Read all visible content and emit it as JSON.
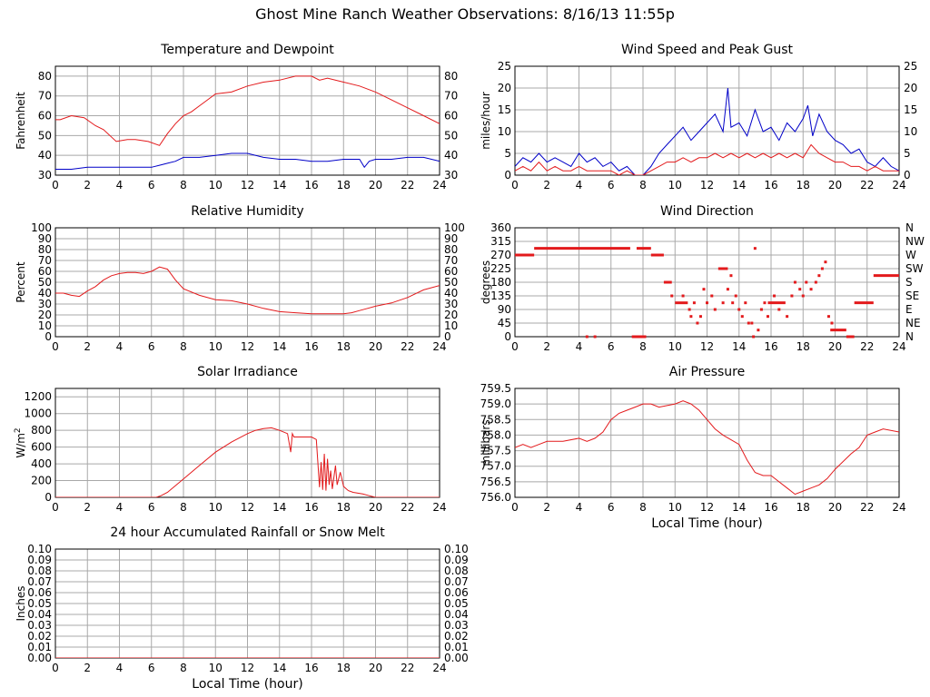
{
  "page_title": "Ghost Mine Ranch Weather Observations: 8/16/13 11:55p",
  "colors": {
    "primary": "#e31a1c",
    "secondary": "#0000c8",
    "grid": "#a8a8a8",
    "frame": "#000000"
  },
  "chart_data": [
    {
      "id": "temp",
      "type": "line",
      "title": "Temperature and Dewpoint",
      "ylabel": "Fahrenheit",
      "xlabel": "",
      "xlim": [
        0,
        24
      ],
      "ylim": [
        30,
        85
      ],
      "yticks": [
        30,
        40,
        50,
        60,
        70,
        80
      ],
      "xticks": [
        0,
        2,
        4,
        6,
        8,
        10,
        12,
        14,
        16,
        18,
        20,
        22,
        24
      ],
      "right_ticks": true,
      "series": [
        {
          "color": "#e31a1c",
          "x": [
            0,
            0.3,
            1,
            1.8,
            2.5,
            3,
            3.8,
            4.5,
            5,
            5.8,
            6.5,
            7,
            7.5,
            8,
            8.5,
            9,
            9.5,
            10,
            11,
            12,
            13,
            14,
            15,
            16,
            16.5,
            17,
            18,
            19,
            20,
            21,
            22,
            23,
            24
          ],
          "y": [
            58,
            58,
            60,
            59,
            55,
            53,
            47,
            48,
            48,
            47,
            45,
            51,
            56,
            60,
            62,
            65,
            68,
            71,
            72,
            75,
            77,
            78,
            80,
            80,
            78,
            79,
            77,
            75,
            72,
            68,
            64,
            60,
            56
          ]
        },
        {
          "color": "#0000c8",
          "x": [
            0,
            1,
            2,
            3,
            4,
            5,
            6,
            6.5,
            7,
            7.5,
            8,
            9,
            10,
            11,
            12,
            13,
            14,
            15,
            16,
            17,
            18,
            19,
            19.3,
            19.6,
            20,
            21,
            22,
            23,
            24
          ],
          "y": [
            33,
            33,
            34,
            34,
            34,
            34,
            34,
            35,
            36,
            37,
            39,
            39,
            40,
            41,
            41,
            39,
            38,
            38,
            37,
            37,
            38,
            38,
            34,
            37,
            38,
            38,
            39,
            39,
            37
          ]
        }
      ]
    },
    {
      "id": "wind",
      "type": "line",
      "title": "Wind Speed and Peak Gust",
      "ylabel": "miles/hour",
      "xlabel": "",
      "xlim": [
        0,
        24
      ],
      "ylim": [
        0,
        25
      ],
      "yticks": [
        0,
        5,
        10,
        15,
        20,
        25
      ],
      "xticks": [
        0,
        2,
        4,
        6,
        8,
        10,
        12,
        14,
        16,
        18,
        20,
        22,
        24
      ],
      "right_ticks": true,
      "series": [
        {
          "color": "#0000c8",
          "x": [
            0,
            0.5,
            1,
            1.5,
            2,
            2.5,
            3,
            3.5,
            4,
            4.5,
            5,
            5.5,
            6,
            6.5,
            7,
            7.5,
            8,
            8.5,
            9,
            9.5,
            10,
            10.5,
            11,
            11.5,
            12,
            12.5,
            13,
            13.3,
            13.5,
            14,
            14.5,
            15,
            15.5,
            16,
            16.5,
            17,
            17.5,
            18,
            18.3,
            18.6,
            19,
            19.5,
            20,
            20.5,
            21,
            21.5,
            22,
            22.5,
            23,
            23.5,
            24
          ],
          "y": [
            2,
            4,
            3,
            5,
            3,
            4,
            3,
            2,
            5,
            3,
            4,
            2,
            3,
            1,
            2,
            0,
            0,
            2,
            5,
            7,
            9,
            11,
            8,
            10,
            12,
            14,
            10,
            20,
            11,
            12,
            9,
            15,
            10,
            11,
            8,
            12,
            10,
            13,
            16,
            9,
            14,
            10,
            8,
            7,
            5,
            6,
            3,
            2,
            4,
            2,
            1
          ]
        },
        {
          "color": "#e31a1c",
          "x": [
            0,
            0.5,
            1,
            1.5,
            2,
            2.5,
            3,
            3.5,
            4,
            4.5,
            5,
            5.5,
            6,
            6.5,
            7,
            7.5,
            8,
            8.5,
            9,
            9.5,
            10,
            10.5,
            11,
            11.5,
            12,
            12.5,
            13,
            13.5,
            14,
            14.5,
            15,
            15.5,
            16,
            16.5,
            17,
            17.5,
            18,
            18.5,
            19,
            19.5,
            20,
            20.5,
            21,
            21.5,
            22,
            22.5,
            23,
            23.5,
            24
          ],
          "y": [
            1,
            2,
            1,
            3,
            1,
            2,
            1,
            1,
            2,
            1,
            1,
            1,
            1,
            0,
            1,
            0,
            0,
            1,
            2,
            3,
            3,
            4,
            3,
            4,
            4,
            5,
            4,
            5,
            4,
            5,
            4,
            5,
            4,
            5,
            4,
            5,
            4,
            7,
            5,
            4,
            3,
            3,
            2,
            2,
            1,
            2,
            1,
            1,
            1
          ]
        }
      ]
    },
    {
      "id": "humidity",
      "type": "line",
      "title": "Relative Humidity",
      "ylabel": "Percent",
      "xlabel": "",
      "xlim": [
        0,
        24
      ],
      "ylim": [
        0,
        100
      ],
      "yticks": [
        0,
        10,
        20,
        30,
        40,
        50,
        60,
        70,
        80,
        90,
        100
      ],
      "xticks": [
        0,
        2,
        4,
        6,
        8,
        10,
        12,
        14,
        16,
        18,
        20,
        22,
        24
      ],
      "right_ticks": true,
      "series": [
        {
          "color": "#e31a1c",
          "x": [
            0,
            0.5,
            1,
            1.5,
            2,
            2.5,
            3,
            3.5,
            4,
            4.5,
            5,
            5.5,
            6,
            6.5,
            7,
            7.5,
            8,
            9,
            10,
            11,
            12,
            13,
            14,
            15,
            16,
            17,
            18,
            18.5,
            19,
            19.5,
            20,
            21,
            22,
            23,
            24
          ],
          "y": [
            40,
            40,
            38,
            37,
            42,
            46,
            52,
            56,
            58,
            59,
            59,
            58,
            60,
            64,
            62,
            52,
            44,
            38,
            34,
            33,
            30,
            26,
            23,
            22,
            21,
            21,
            21,
            22,
            24,
            26,
            28,
            31,
            36,
            43,
            47
          ]
        }
      ]
    },
    {
      "id": "winddir",
      "type": "scatter",
      "title": "Wind Direction",
      "ylabel": "degrees",
      "xlabel": "",
      "xlim": [
        0,
        24
      ],
      "ylim": [
        0,
        360
      ],
      "yticks": [
        0,
        45,
        90,
        135,
        180,
        225,
        270,
        315,
        360
      ],
      "right_labels": [
        "N",
        "NE",
        "E",
        "SE",
        "S",
        "SW",
        "W",
        "NW",
        "N"
      ],
      "xticks": [
        0,
        2,
        4,
        6,
        8,
        10,
        12,
        14,
        16,
        18,
        20,
        22,
        24
      ],
      "segments": [
        {
          "x": [
            0,
            1.2
          ],
          "y": 270
        },
        {
          "x": [
            1.2,
            7.2
          ],
          "y": 292
        },
        {
          "x": [
            7.6,
            8.5
          ],
          "y": 292
        },
        {
          "x": [
            8.5,
            9.3
          ],
          "y": 270
        },
        {
          "x": [
            7.3,
            8.2
          ],
          "y": 0
        },
        {
          "x": [
            9.3,
            9.8
          ],
          "y": 180
        },
        {
          "x": [
            10,
            10.8
          ],
          "y": 112
        },
        {
          "x": [
            12.7,
            13.3
          ],
          "y": 225
        },
        {
          "x": [
            15.8,
            16.9
          ],
          "y": 112
        },
        {
          "x": [
            19.7,
            20.7
          ],
          "y": 22
        },
        {
          "x": [
            20.7,
            21.2
          ],
          "y": 0
        },
        {
          "x": [
            21.2,
            22.4
          ],
          "y": 112
        },
        {
          "x": [
            22.4,
            24
          ],
          "y": 202
        }
      ],
      "points": [
        {
          "x": 4.5,
          "y": 0
        },
        {
          "x": 5.0,
          "y": 0
        },
        {
          "x": 9.8,
          "y": 135
        },
        {
          "x": 10.5,
          "y": 135
        },
        {
          "x": 10.9,
          "y": 90
        },
        {
          "x": 11.0,
          "y": 67
        },
        {
          "x": 11.2,
          "y": 112
        },
        {
          "x": 11.4,
          "y": 45
        },
        {
          "x": 11.6,
          "y": 67
        },
        {
          "x": 11.8,
          "y": 157
        },
        {
          "x": 12.0,
          "y": 112
        },
        {
          "x": 12.3,
          "y": 135
        },
        {
          "x": 12.5,
          "y": 90
        },
        {
          "x": 13.0,
          "y": 112
        },
        {
          "x": 13.3,
          "y": 157
        },
        {
          "x": 13.5,
          "y": 202
        },
        {
          "x": 13.6,
          "y": 112
        },
        {
          "x": 13.8,
          "y": 135
        },
        {
          "x": 14.0,
          "y": 90
        },
        {
          "x": 14.2,
          "y": 67
        },
        {
          "x": 14.4,
          "y": 112
        },
        {
          "x": 14.6,
          "y": 45
        },
        {
          "x": 14.8,
          "y": 45
        },
        {
          "x": 14.9,
          "y": 0
        },
        {
          "x": 15.0,
          "y": 292
        },
        {
          "x": 15.2,
          "y": 22
        },
        {
          "x": 15.4,
          "y": 90
        },
        {
          "x": 15.6,
          "y": 112
        },
        {
          "x": 15.8,
          "y": 67
        },
        {
          "x": 16.2,
          "y": 135
        },
        {
          "x": 16.5,
          "y": 90
        },
        {
          "x": 17.0,
          "y": 67
        },
        {
          "x": 17.3,
          "y": 135
        },
        {
          "x": 17.5,
          "y": 180
        },
        {
          "x": 17.8,
          "y": 157
        },
        {
          "x": 18.0,
          "y": 135
        },
        {
          "x": 18.2,
          "y": 180
        },
        {
          "x": 18.5,
          "y": 157
        },
        {
          "x": 18.8,
          "y": 180
        },
        {
          "x": 19.0,
          "y": 202
        },
        {
          "x": 19.2,
          "y": 225
        },
        {
          "x": 19.4,
          "y": 247
        },
        {
          "x": 19.6,
          "y": 67
        },
        {
          "x": 19.8,
          "y": 45
        }
      ]
    },
    {
      "id": "solar",
      "type": "line",
      "title": "Solar Irradiance",
      "ylabel": "W/m",
      "ylabel_sup": "2",
      "xlabel": "",
      "xlim": [
        0,
        24
      ],
      "ylim": [
        0,
        1300
      ],
      "yticks": [
        0,
        200,
        400,
        600,
        800,
        1000,
        1200
      ],
      "xticks": [
        0,
        2,
        4,
        6,
        8,
        10,
        12,
        14,
        16,
        18,
        20,
        22,
        24
      ],
      "right_ticks": false,
      "series": [
        {
          "color": "#e31a1c",
          "x": [
            0,
            6.3,
            6.6,
            7,
            8,
            9,
            10,
            11,
            12,
            12.5,
            13,
            13.5,
            14,
            14.5,
            14.7,
            14.8,
            14.9,
            15.3,
            16,
            16.3,
            16.5,
            16.6,
            16.7,
            16.8,
            16.9,
            17.0,
            17.1,
            17.2,
            17.3,
            17.5,
            17.6,
            17.8,
            18.0,
            18.3,
            18.6,
            19.2,
            19.6,
            20,
            24
          ],
          "y": [
            0,
            0,
            20,
            60,
            220,
            380,
            540,
            660,
            760,
            800,
            820,
            830,
            800,
            760,
            540,
            760,
            720,
            720,
            720,
            690,
            120,
            420,
            90,
            520,
            80,
            460,
            150,
            320,
            100,
            380,
            150,
            300,
            130,
            80,
            60,
            40,
            20,
            0,
            0
          ]
        }
      ]
    },
    {
      "id": "pressure",
      "type": "line",
      "title": "Air Pressure",
      "ylabel": "millibars",
      "xlabel": "Local Time (hour)",
      "xlim": [
        0,
        24
      ],
      "ylim": [
        756.0,
        759.5
      ],
      "yticks": [
        756.0,
        756.5,
        757.0,
        757.5,
        758.0,
        758.5,
        759.0,
        759.5
      ],
      "ytick_labels": [
        "756.0",
        "756.5",
        "757.0",
        "757.5",
        "758.0",
        "758.5",
        "759.0",
        "759.5"
      ],
      "xticks": [
        0,
        2,
        4,
        6,
        8,
        10,
        12,
        14,
        16,
        18,
        20,
        22,
        24
      ],
      "right_ticks": false,
      "series": [
        {
          "color": "#e31a1c",
          "x": [
            0,
            0.5,
            1,
            1.5,
            2,
            3,
            4,
            4.5,
            5,
            5.5,
            6,
            6.5,
            7,
            7.5,
            8,
            8.5,
            9,
            10,
            10.5,
            11,
            11.5,
            12,
            12.5,
            13,
            14,
            14.5,
            15,
            15.5,
            16,
            16.5,
            17,
            17.5,
            18,
            18.5,
            19,
            19.5,
            20,
            21,
            21.5,
            22,
            22.5,
            23,
            24
          ],
          "y": [
            757.6,
            757.7,
            757.6,
            757.7,
            757.8,
            757.8,
            757.9,
            757.8,
            757.9,
            758.1,
            758.5,
            758.7,
            758.8,
            758.9,
            759.0,
            759.0,
            758.9,
            759.0,
            759.1,
            759.0,
            758.8,
            758.5,
            758.2,
            758.0,
            757.7,
            757.2,
            756.8,
            756.7,
            756.7,
            756.5,
            756.3,
            756.1,
            756.2,
            756.3,
            756.4,
            756.6,
            756.9,
            757.4,
            757.6,
            758.0,
            758.1,
            758.2,
            758.1
          ]
        }
      ]
    },
    {
      "id": "rain",
      "type": "line",
      "title": "24 hour Accumulated Rainfall or Snow Melt",
      "ylabel": "Inches",
      "xlabel": "Local Time (hour)",
      "xlim": [
        0,
        24
      ],
      "ylim": [
        0,
        0.1
      ],
      "yticks": [
        0,
        0.01,
        0.02,
        0.03,
        0.04,
        0.05,
        0.06,
        0.07,
        0.08,
        0.09,
        0.1
      ],
      "ytick_labels": [
        "0.00",
        "0.01",
        "0.02",
        "0.03",
        "0.04",
        "0.05",
        "0.06",
        "0.07",
        "0.08",
        "0.09",
        "0.10"
      ],
      "xticks": [
        0,
        2,
        4,
        6,
        8,
        10,
        12,
        14,
        16,
        18,
        20,
        22,
        24
      ],
      "right_ticks": true,
      "series": [
        {
          "color": "#e31a1c",
          "x": [
            0,
            24
          ],
          "y": [
            0,
            0
          ]
        }
      ]
    }
  ]
}
